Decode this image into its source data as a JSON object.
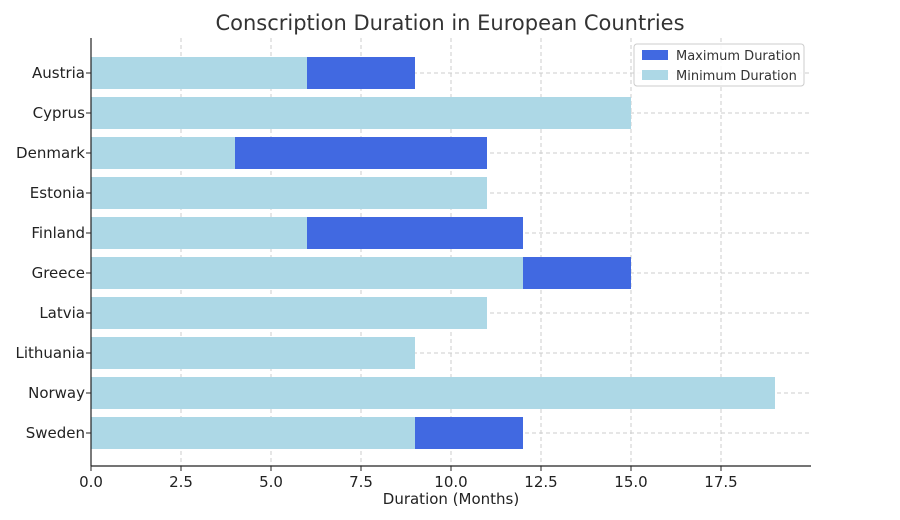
{
  "chart_data": {
    "type": "bar",
    "orientation": "horizontal",
    "title": "Conscription Duration in European Countries",
    "xlabel": "Duration (Months)",
    "ylabel": "",
    "categories": [
      "Austria",
      "Cyprus",
      "Denmark",
      "Estonia",
      "Finland",
      "Greece",
      "Latvia",
      "Lithuania",
      "Norway",
      "Sweden"
    ],
    "series": [
      {
        "name": "Maximum Duration",
        "color": "#4169E1",
        "values": [
          9,
          15,
          11,
          11,
          12,
          15,
          11,
          9,
          19,
          12
        ]
      },
      {
        "name": "Minimum Duration",
        "color": "#ADD8E6",
        "values": [
          6,
          15,
          4,
          11,
          6,
          12,
          11,
          9,
          19,
          9
        ]
      }
    ],
    "xlim": [
      0,
      20
    ],
    "xticks": [
      0.0,
      2.5,
      5.0,
      7.5,
      10.0,
      12.5,
      15.0,
      17.5
    ],
    "xtick_labels": [
      "0.0",
      "2.5",
      "5.0",
      "7.5",
      "10.0",
      "12.5",
      "15.0",
      "17.5"
    ],
    "grid": true,
    "legend_position": "top-right"
  }
}
